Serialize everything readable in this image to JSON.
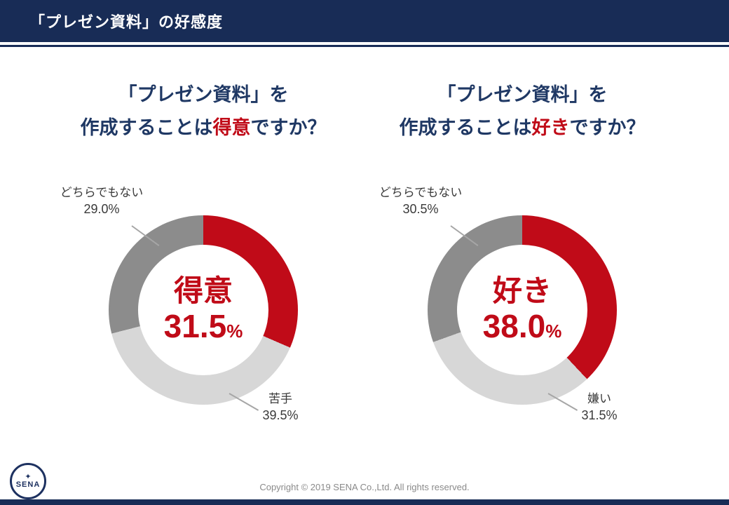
{
  "header": {
    "title": "「プレゼン資料」の好感度"
  },
  "colors": {
    "navy": "#182c56",
    "title_navy": "#1f3864",
    "red": "#c00b18",
    "gray_dark": "#8c8c8c",
    "gray_light": "#d7d7d7",
    "leader_gray": "#a6a6a6"
  },
  "chart_data": [
    {
      "type": "pie",
      "subtype": "donut",
      "title": {
        "line1": "「プレゼン資料」を",
        "line2_pre": "作成することは",
        "line2_em": "得意",
        "line2_post": "ですか？"
      },
      "center": {
        "label": "得意",
        "value": "31.5",
        "unit": "%"
      },
      "segments": [
        {
          "label": "得意",
          "value": 31.5,
          "color": "#c00b18"
        },
        {
          "label": "苦手",
          "value": 39.5,
          "color": "#d7d7d7"
        },
        {
          "label": "どちらでもない",
          "value": 29.0,
          "color": "#8c8c8c"
        }
      ],
      "callouts": {
        "top_left": {
          "label": "どちらでもない",
          "value": "29.0%"
        },
        "bottom_right": {
          "label": "苦手",
          "value": "39.5%"
        }
      }
    },
    {
      "type": "pie",
      "subtype": "donut",
      "title": {
        "line1": "「プレゼン資料」を",
        "line2_pre": "作成することは",
        "line2_em": "好き",
        "line2_post": "ですか？"
      },
      "center": {
        "label": "好き",
        "value": "38.0",
        "unit": "%"
      },
      "segments": [
        {
          "label": "好き",
          "value": 38.0,
          "color": "#c00b18"
        },
        {
          "label": "嫌い",
          "value": 31.5,
          "color": "#d7d7d7"
        },
        {
          "label": "どちらでもない",
          "value": 30.5,
          "color": "#8c8c8c"
        }
      ],
      "callouts": {
        "top_left": {
          "label": "どちらでもない",
          "value": "30.5%"
        },
        "bottom_right": {
          "label": "嫌い",
          "value": "31.5%"
        }
      }
    }
  ],
  "footer": {
    "copyright": "Copyright © 2019 SENA Co.,Ltd. All rights reserved.",
    "logo": "SENA",
    "logo_star": "✦"
  }
}
